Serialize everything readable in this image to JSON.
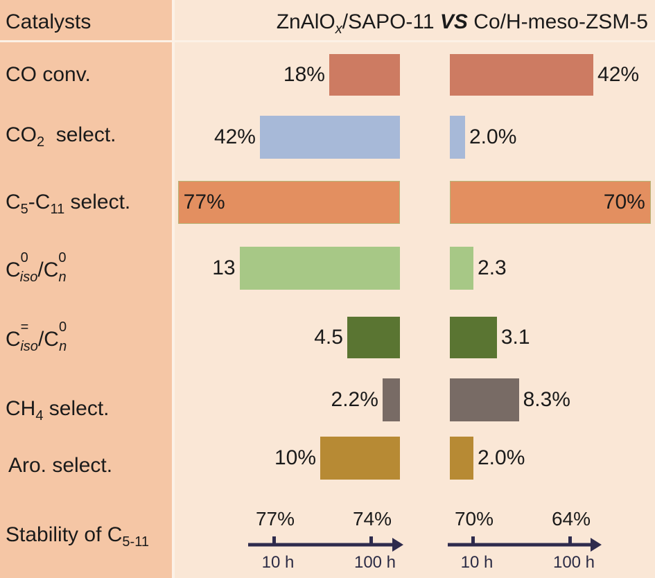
{
  "chart_data": {
    "type": "bar",
    "title": "ZnAlOx/SAPO-11 VS Co/H-meso-ZSM-5",
    "header_label": "Catalysts",
    "catalysts": [
      {
        "name": "ZnAlOx/SAPO-11",
        "base": "ZnAlO",
        "sub": "x",
        "rest": "/SAPO-11"
      },
      {
        "name": "Co/H-meso-ZSM-5"
      }
    ],
    "vs_label": "VS",
    "metrics": [
      {
        "key": "co_conv",
        "label": "CO conv.",
        "color": "#CD7B62",
        "left": {
          "value": 18,
          "label": "18%"
        },
        "right": {
          "value": 42,
          "label": "42%"
        }
      },
      {
        "key": "co2_select",
        "label": "CO2 select.",
        "color": "#A7B9D8",
        "left": {
          "value": 42,
          "label": "42%"
        },
        "right": {
          "value": 2.0,
          "label": "2.0%"
        }
      },
      {
        "key": "c5_c11_select",
        "label": "C5-C11 select.",
        "color": "#E38F60",
        "left": {
          "value": 77,
          "label": "77%"
        },
        "right": {
          "value": 70,
          "label": "70%"
        }
      },
      {
        "key": "ciso0_cn0",
        "label": "Ciso0/Cn0",
        "color": "#A7C886",
        "left": {
          "value": 13,
          "label": "13"
        },
        "right": {
          "value": 2.3,
          "label": "2.3"
        }
      },
      {
        "key": "ciso_eq_cn0",
        "label": "Ciso=/Cn0",
        "color": "#5A7532",
        "left": {
          "value": 4.5,
          "label": "4.5"
        },
        "right": {
          "value": 3.1,
          "label": "3.1"
        }
      },
      {
        "key": "ch4_select",
        "label": "CH4 select.",
        "color": "#786B65",
        "left": {
          "value": 2.2,
          "label": "2.2%"
        },
        "right": {
          "value": 8.3,
          "label": "8.3%"
        }
      },
      {
        "key": "aro_select",
        "label": "Aro. select.",
        "color": "#B78A34",
        "left": {
          "value": 10,
          "label": "10%"
        },
        "right": {
          "value": 2.0,
          "label": "2.0%"
        }
      }
    ],
    "stability": {
      "label": "Stability of C5-11",
      "axis_color": "#2E2B4D",
      "left": [
        {
          "time": "10 h",
          "value": "77%"
        },
        {
          "time": "100 h",
          "value": "74%"
        }
      ],
      "right": [
        {
          "time": "10 h",
          "value": "70%"
        },
        {
          "time": "100 h",
          "value": "64%"
        }
      ]
    }
  }
}
